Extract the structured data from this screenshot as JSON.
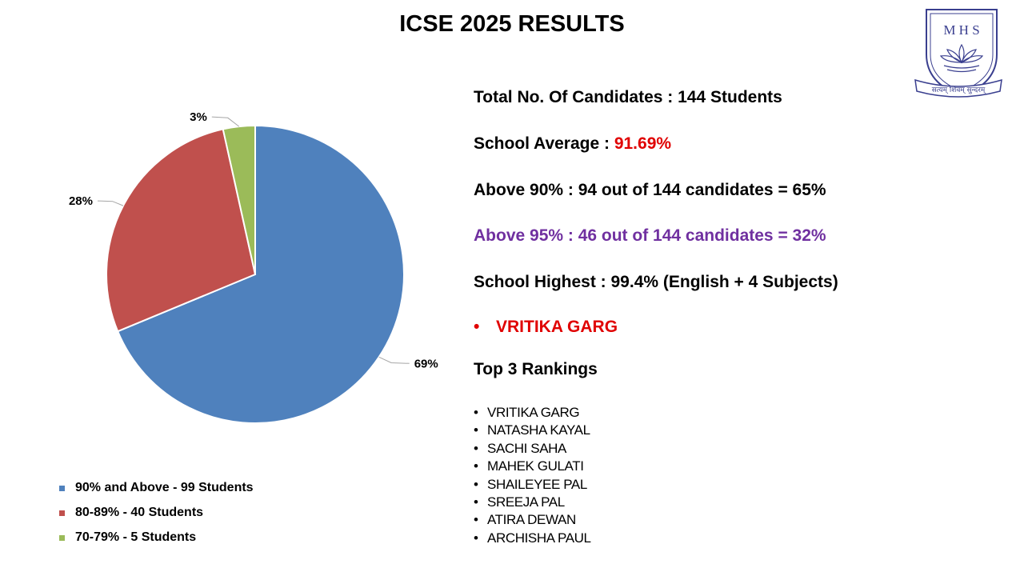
{
  "page": {
    "title": "ICSE 2025 RESULTS"
  },
  "logo": {
    "letters": "M H S",
    "motto": "सत्यम् शिवम् सुन्दरम्"
  },
  "colors": {
    "blue": "#4f81bd",
    "red": "#c0504d",
    "green": "#9bbb59",
    "highlight_red": "#e00000",
    "purple": "#7030a0"
  },
  "chart_data": {
    "type": "pie",
    "categories": [
      "90% and Above - 99 Students",
      "80-89% - 40 Students",
      "70-79% - 5 Students"
    ],
    "values": [
      99,
      40,
      5
    ],
    "percent_labels": [
      "69%",
      "28%",
      "3%"
    ],
    "legend_position": "bottom-left"
  },
  "stats": {
    "total": "Total No. Of Candidates  :  144 Students",
    "average_label": "School Average :  ",
    "average_value": "91.69%",
    "above90": "Above 90%   :  94 out of 144 candidates = 65%",
    "above95": "Above 95%   :  46 out of 144 candidates =  32%",
    "highest": "School Highest  :  99.4%  (English + 4 Subjects)",
    "bullet": "•",
    "topper": "VRITIKA GARG",
    "rankings_heading": "Top 3 Rankings"
  },
  "rankings": [
    "VRITIKA GARG",
    "NATASHA KAYAL",
    "SACHI SAHA",
    "MAHEK GULATI",
    "SHAILEYEE PAL",
    "SREEJA PAL",
    "ATIRA DEWAN",
    "ARCHISHA PAUL"
  ]
}
